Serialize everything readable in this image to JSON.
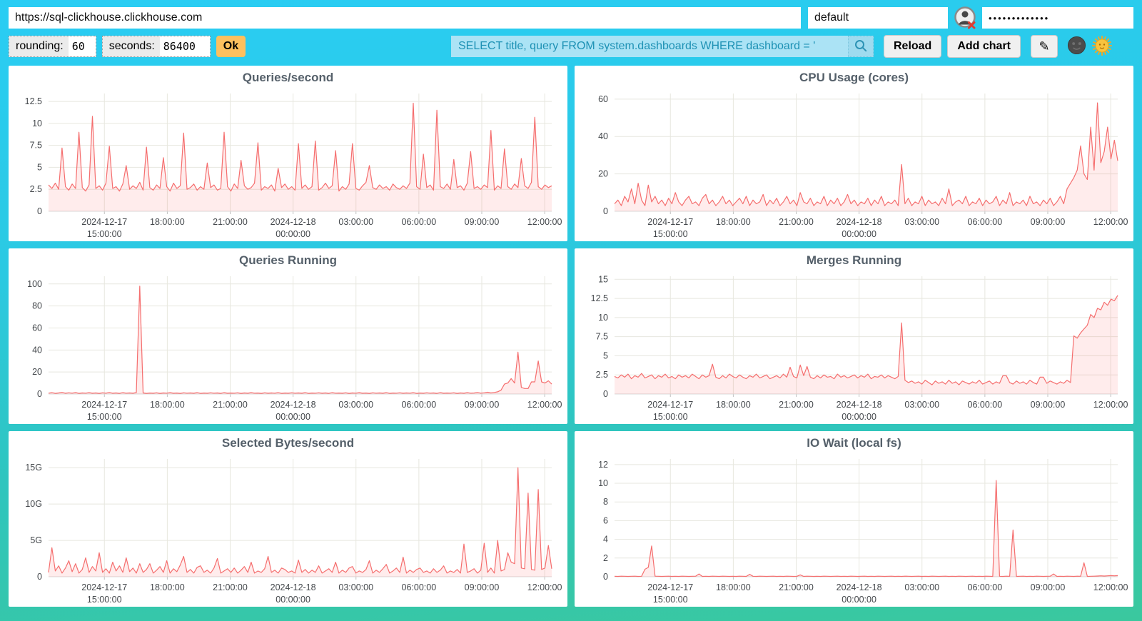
{
  "toolbar": {
    "url": {
      "value": "https://sql-clickhouse.clickhouse.com"
    },
    "user": {
      "value": "default"
    },
    "password": {
      "value": "•••••••••••••"
    },
    "rounding": {
      "label": "rounding:",
      "value": "60"
    },
    "seconds": {
      "label": "seconds:",
      "value": "86400"
    },
    "ok_label": "Ok",
    "query": {
      "value": "SELECT title, query FROM system.dashboards WHERE dashboard = '"
    },
    "reload_label": "Reload",
    "add_chart_label": "Add chart",
    "edit_glyph": "✎",
    "icons": {
      "search": "magnifier-icon",
      "user_status": "user-x-icon",
      "theme_dark": "moon-face-icon",
      "theme_light": "sun-face-icon"
    }
  },
  "colors": {
    "line": "#f56e6e",
    "fill": "rgba(255,102,102,0.12)",
    "grid": "#e7e7df",
    "axis": "#d8d8d8",
    "tick_mark": "#c0c0c0",
    "tick_text": "#44484c",
    "accent_cyan": "#2acdf4",
    "accent_teal": "#3ac89e",
    "query_bg": "#abe3f5",
    "query_text": "#1d91b4",
    "ok_bg": "#fdc05e"
  },
  "xticks": {
    "fractions": [
      0.111,
      0.236,
      0.361,
      0.486,
      0.611,
      0.736,
      0.861,
      0.986
    ],
    "labels": [
      [
        "2024-12-17",
        "15:00:00"
      ],
      [
        "18:00:00"
      ],
      [
        "21:00:00"
      ],
      [
        "2024-12-18",
        "00:00:00"
      ],
      [
        "03:00:00"
      ],
      [
        "06:00:00"
      ],
      [
        "09:00:00"
      ],
      [
        "12:00:00"
      ]
    ]
  },
  "chart_data": [
    {
      "type": "area",
      "title": "Queries/second",
      "xlabel": "",
      "ylabel": "",
      "x_range": [
        "2024-12-17 ~12:20:00",
        "2024-12-18 ~12:20:00"
      ],
      "ylim": [
        0,
        13.4
      ],
      "ytick_values": [
        0,
        2.5,
        5,
        7.5,
        10,
        12.5
      ],
      "ytick_labels": [
        "0",
        "2.5",
        "5",
        "7.5",
        "10",
        "12.5"
      ],
      "values": [
        3.0,
        2.6,
        3.2,
        2.5,
        7.2,
        2.8,
        2.4,
        3.1,
        2.6,
        9.0,
        2.7,
        2.3,
        3.0,
        10.8,
        2.6,
        2.9,
        2.4,
        3.2,
        7.4,
        2.6,
        2.8,
        2.3,
        3.1,
        5.2,
        2.5,
        2.9,
        2.6,
        3.3,
        2.4,
        7.3,
        2.7,
        2.4,
        3.0,
        2.6,
        6.1,
        2.8,
        2.3,
        3.2,
        2.6,
        2.9,
        8.9,
        2.5,
        2.7,
        3.1,
        2.4,
        2.8,
        2.5,
        5.5,
        2.7,
        3.0,
        2.4,
        2.6,
        9.0,
        2.8,
        2.3,
        3.1,
        2.6,
        5.8,
        2.9,
        2.5,
        2.7,
        3.2,
        7.8,
        2.4,
        2.8,
        2.6,
        3.0,
        2.3,
        4.9,
        2.7,
        3.1,
        2.5,
        2.8,
        2.4,
        7.7,
        2.6,
        3.0,
        2.5,
        2.8,
        8.0,
        2.4,
        2.7,
        3.2,
        2.6,
        2.9,
        6.9,
        2.3,
        2.8,
        2.5,
        3.1,
        7.7,
        2.6,
        2.4,
        2.9,
        3.3,
        5.2,
        2.7,
        2.5,
        3.0,
        2.6,
        2.8,
        2.4,
        3.1,
        2.7,
        2.5,
        2.9,
        2.6,
        3.2,
        12.3,
        2.8,
        2.5,
        6.5,
        2.7,
        3.0,
        2.4,
        11.5,
        2.8,
        2.6,
        3.1,
        2.5,
        5.9,
        2.7,
        2.9,
        2.4,
        3.2,
        6.8,
        2.6,
        2.8,
        2.5,
        3.0,
        2.7,
        9.2,
        2.4,
        2.9,
        2.6,
        7.1,
        2.8,
        2.5,
        3.1,
        2.7,
        6.0,
        2.9,
        2.6,
        3.3,
        10.7,
        2.8,
        2.5,
        3.0,
        2.7,
        2.9
      ]
    },
    {
      "type": "area",
      "title": "CPU Usage (cores)",
      "xlabel": "",
      "ylabel": "",
      "x_range": [
        "2024-12-17 ~12:20:00",
        "2024-12-18 ~12:20:00"
      ],
      "ylim": [
        0,
        63
      ],
      "ytick_values": [
        0,
        20,
        40,
        60
      ],
      "ytick_labels": [
        "0",
        "20",
        "40",
        "60"
      ],
      "values": [
        4,
        6,
        3,
        8,
        5,
        12,
        4,
        15,
        6,
        3,
        14,
        5,
        8,
        4,
        6,
        3,
        7,
        4,
        10,
        5,
        3,
        6,
        8,
        4,
        5,
        3,
        7,
        9,
        4,
        6,
        3,
        5,
        8,
        4,
        6,
        3,
        5,
        7,
        4,
        8,
        3,
        6,
        4,
        5,
        9,
        3,
        6,
        4,
        7,
        3,
        5,
        8,
        4,
        6,
        3,
        10,
        5,
        4,
        7,
        3,
        5,
        4,
        8,
        3,
        6,
        4,
        7,
        3,
        5,
        9,
        4,
        6,
        3,
        5,
        4,
        7,
        3,
        6,
        4,
        8,
        3,
        5,
        4,
        6,
        3,
        25,
        4,
        7,
        3,
        5,
        4,
        8,
        3,
        6,
        4,
        5,
        3,
        7,
        4,
        12,
        3,
        5,
        6,
        4,
        8,
        3,
        5,
        4,
        7,
        3,
        6,
        4,
        5,
        8,
        3,
        6,
        4,
        10,
        3,
        5,
        4,
        6,
        3,
        8,
        4,
        5,
        3,
        6,
        4,
        7,
        3,
        5,
        8,
        4,
        12,
        15,
        18,
        22,
        35,
        20,
        17,
        45,
        22,
        58,
        26,
        32,
        45,
        28,
        38,
        27
      ]
    },
    {
      "type": "area",
      "title": "Queries Running",
      "xlabel": "",
      "ylabel": "",
      "x_range": [
        "2024-12-17 ~12:20:00",
        "2024-12-18 ~12:20:00"
      ],
      "ylim": [
        0,
        107
      ],
      "ytick_values": [
        0,
        20,
        40,
        60,
        80,
        100
      ],
      "ytick_labels": [
        "0",
        "20",
        "40",
        "60",
        "80",
        "100"
      ],
      "values": [
        0.8,
        1.2,
        0.6,
        1.0,
        1.5,
        0.7,
        1.1,
        0.8,
        1.3,
        0.6,
        1.0,
        0.8,
        1.2,
        0.7,
        1.0,
        0.6,
        1.1,
        0.8,
        1.4,
        0.7,
        1.0,
        0.6,
        1.2,
        0.8,
        1.0,
        0.7,
        1.3,
        98,
        1.0,
        0.6,
        0.9,
        0.7,
        1.1,
        0.6,
        1.0,
        0.8,
        1.2,
        0.7,
        0.9,
        0.6,
        1.1,
        0.8,
        1.0,
        0.7,
        1.2,
        0.6,
        0.9,
        0.7,
        1.1,
        0.8,
        1.0,
        0.6,
        1.2,
        0.7,
        0.9,
        0.8,
        1.1,
        0.6,
        1.0,
        0.7,
        1.2,
        0.8,
        0.9,
        0.6,
        1.1,
        0.7,
        1.0,
        0.8,
        1.2,
        0.6,
        0.9,
        0.7,
        1.1,
        0.8,
        1.0,
        0.7,
        1.2,
        0.6,
        0.9,
        0.8,
        1.1,
        0.7,
        1.0,
        0.6,
        1.2,
        0.8,
        0.9,
        0.7,
        1.1,
        0.6,
        1.0,
        0.8,
        1.2,
        0.7,
        0.9,
        0.6,
        1.1,
        0.8,
        1.0,
        0.7,
        1.2,
        0.6,
        0.9,
        0.8,
        1.1,
        0.7,
        1.0,
        0.8,
        1.2,
        0.6,
        0.9,
        0.7,
        1.1,
        0.8,
        1.0,
        0.6,
        1.2,
        0.7,
        0.9,
        0.8,
        1.1,
        0.6,
        1.0,
        0.7,
        1.2,
        0.8,
        0.9,
        1.4,
        0.8,
        1.1,
        1.6,
        1.0,
        1.4,
        2.0,
        3.5,
        9,
        10,
        14,
        10,
        38,
        6,
        5,
        5,
        11,
        11,
        30,
        11,
        10,
        12,
        9
      ]
    },
    {
      "type": "area",
      "title": "Merges Running",
      "xlabel": "",
      "ylabel": "",
      "x_range": [
        "2024-12-17 ~12:20:00",
        "2024-12-18 ~12:20:00"
      ],
      "ylim": [
        0,
        15.4
      ],
      "ytick_values": [
        0,
        2.5,
        5,
        7.5,
        10,
        12.5,
        15
      ],
      "ytick_labels": [
        "0",
        "2.5",
        "5",
        "7.5",
        "10",
        "12.5",
        "15"
      ],
      "values": [
        2.3,
        2.1,
        2.5,
        2.2,
        2.6,
        2.0,
        2.4,
        2.2,
        2.7,
        2.1,
        2.3,
        2.5,
        2.0,
        2.4,
        2.2,
        2.6,
        2.1,
        2.3,
        2.0,
        2.5,
        2.2,
        2.4,
        2.1,
        2.6,
        2.3,
        2.0,
        2.5,
        2.2,
        2.4,
        3.9,
        2.2,
        2.0,
        2.4,
        2.1,
        2.6,
        2.3,
        2.1,
        2.5,
        2.2,
        2.0,
        2.4,
        2.2,
        2.6,
        2.1,
        2.3,
        2.5,
        2.0,
        2.2,
        2.4,
        2.1,
        2.6,
        2.2,
        3.5,
        2.3,
        2.1,
        3.8,
        2.4,
        3.6,
        2.2,
        2.0,
        2.4,
        2.1,
        2.5,
        2.2,
        2.3,
        2.0,
        2.6,
        2.2,
        2.4,
        2.1,
        2.3,
        2.5,
        2.1,
        2.4,
        2.2,
        2.6,
        2.0,
        2.3,
        2.2,
        2.5,
        2.1,
        2.4,
        2.2,
        2.0,
        2.3,
        9.3,
        1.8,
        1.5,
        1.7,
        1.4,
        1.6,
        1.3,
        1.8,
        1.5,
        1.2,
        1.7,
        1.4,
        1.6,
        1.3,
        1.8,
        1.4,
        1.6,
        1.2,
        1.7,
        1.5,
        1.3,
        1.6,
        1.4,
        1.8,
        1.3,
        1.5,
        1.7,
        1.3,
        1.6,
        1.4,
        2.4,
        2.4,
        1.5,
        1.3,
        1.7,
        1.4,
        1.6,
        1.3,
        1.8,
        1.5,
        1.3,
        2.2,
        2.2,
        1.4,
        1.7,
        1.5,
        1.3,
        1.6,
        1.4,
        1.8,
        1.5,
        7.6,
        7.3,
        8.0,
        8.5,
        9.0,
        10.4,
        10.0,
        11.2,
        11.0,
        12.0,
        11.6,
        12.4,
        12.2,
        12.9
      ]
    },
    {
      "type": "area",
      "title": "Selected Bytes/second",
      "xlabel": "",
      "ylabel": "",
      "unit": "G",
      "x_range": [
        "2024-12-17 ~12:20:00",
        "2024-12-18 ~12:20:00"
      ],
      "ylim": [
        0,
        16.2
      ],
      "ytick_values": [
        0,
        5,
        10,
        15
      ],
      "ytick_labels": [
        "0",
        "5G",
        "10G",
        "15G"
      ],
      "values": [
        0.6,
        4.0,
        0.8,
        1.5,
        0.5,
        1.2,
        2.2,
        0.7,
        1.8,
        0.5,
        1.0,
        2.6,
        0.6,
        1.4,
        0.8,
        3.3,
        0.6,
        1.1,
        0.5,
        2.0,
        0.8,
        1.5,
        0.6,
        2.6,
        0.7,
        1.2,
        0.5,
        1.8,
        0.6,
        1.0,
        1.8,
        0.5,
        0.9,
        1.4,
        0.6,
        2.2,
        0.5,
        1.1,
        0.7,
        1.6,
        2.8,
        0.6,
        1.0,
        0.5,
        1.3,
        1.5,
        0.6,
        0.9,
        0.5,
        1.2,
        2.5,
        0.5,
        0.8,
        1.1,
        0.6,
        1.2,
        0.5,
        0.9,
        1.4,
        0.6,
        2.0,
        0.5,
        0.8,
        0.6,
        1.1,
        2.8,
        0.6,
        0.9,
        0.5,
        1.2,
        1.0,
        0.6,
        0.8,
        0.5,
        2.3,
        0.6,
        1.0,
        0.5,
        0.9,
        0.6,
        1.5,
        0.5,
        0.8,
        1.1,
        0.6,
        2.0,
        0.5,
        0.9,
        0.6,
        1.2,
        1.4,
        0.5,
        0.8,
        0.6,
        1.0,
        2.2,
        0.5,
        0.9,
        0.6,
        1.1,
        1.7,
        0.5,
        0.8,
        1.2,
        0.6,
        2.7,
        0.5,
        0.9,
        0.6,
        1.0,
        1.2,
        0.6,
        0.8,
        0.5,
        1.1,
        0.6,
        0.9,
        1.5,
        0.5,
        0.8,
        0.6,
        1.0,
        0.5,
        4.5,
        0.6,
        0.8,
        1.1,
        0.5,
        0.9,
        4.6,
        0.6,
        1.2,
        0.5,
        5.0,
        0.8,
        1.0,
        3.3,
        2.0,
        1.8,
        15.0,
        1.2,
        1.1,
        11.5,
        1.0,
        0.9,
        12.0,
        1.0,
        1.2,
        4.3,
        1.1
      ]
    },
    {
      "type": "area",
      "title": "IO Wait (local fs)",
      "xlabel": "",
      "ylabel": "",
      "x_range": [
        "2024-12-17 ~12:20:00",
        "2024-12-18 ~12:20:00"
      ],
      "ylim": [
        0,
        12.6
      ],
      "ytick_values": [
        0,
        2,
        4,
        6,
        8,
        10,
        12
      ],
      "ytick_labels": [
        "0",
        "2",
        "4",
        "6",
        "8",
        "10",
        "12"
      ],
      "values": [
        0.05,
        0.04,
        0.06,
        0.05,
        0.04,
        0.05,
        0.06,
        0.04,
        0.05,
        0.8,
        1.0,
        3.3,
        0.06,
        0.05,
        0.04,
        0.05,
        0.06,
        0.04,
        0.05,
        0.04,
        0.06,
        0.05,
        0.04,
        0.05,
        0.06,
        0.3,
        0.04,
        0.05,
        0.04,
        0.06,
        0.05,
        0.04,
        0.06,
        0.05,
        0.04,
        0.05,
        0.04,
        0.06,
        0.05,
        0.04,
        0.25,
        0.05,
        0.04,
        0.06,
        0.05,
        0.04,
        0.05,
        0.06,
        0.04,
        0.05,
        0.04,
        0.06,
        0.05,
        0.04,
        0.05,
        0.2,
        0.04,
        0.06,
        0.05,
        0.04,
        0.05,
        0.04,
        0.06,
        0.05,
        0.04,
        0.05,
        0.06,
        0.04,
        0.05,
        0.04,
        0.06,
        0.05,
        0.04,
        0.05,
        0.06,
        0.04,
        0.05,
        0.04,
        0.06,
        0.05,
        0.04,
        0.05,
        0.06,
        0.04,
        0.05,
        0.04,
        0.06,
        0.05,
        0.04,
        0.05,
        0.06,
        0.04,
        0.05,
        0.04,
        0.06,
        0.05,
        0.04,
        0.05,
        0.06,
        0.04,
        0.05,
        0.04,
        0.06,
        0.05,
        0.04,
        0.05,
        0.06,
        0.04,
        0.05,
        0.04,
        0.06,
        0.05,
        0.04,
        10.3,
        0.05,
        0.04,
        0.06,
        0.05,
        5.0,
        0.04,
        0.05,
        0.06,
        0.04,
        0.05,
        0.04,
        0.06,
        0.05,
        0.04,
        0.05,
        0.06,
        0.3,
        0.04,
        0.05,
        0.04,
        0.06,
        0.05,
        0.04,
        0.06,
        0.05,
        1.5,
        0.04,
        0.05,
        0.06,
        0.08,
        0.1,
        0.08,
        0.1,
        0.12,
        0.1,
        0.12
      ]
    }
  ]
}
